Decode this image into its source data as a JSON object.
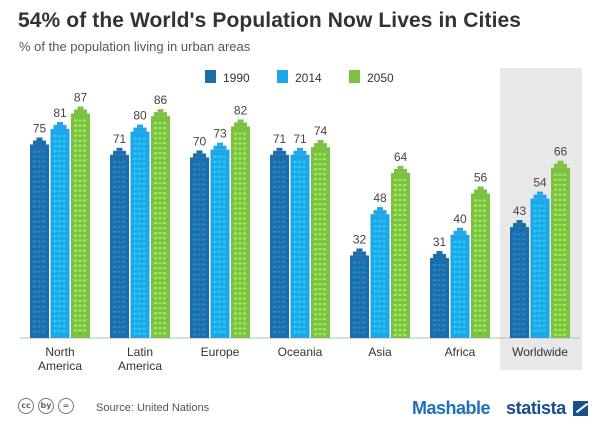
{
  "title": "54% of the World's Population Now Lives in Cities",
  "subtitle": "% of the population living in urban areas",
  "footer": {
    "source": "Source: United Nations",
    "brand_left": "Mashable",
    "brand_right": "statista",
    "license_icons": [
      "cc",
      "by",
      "="
    ]
  },
  "chart_data": {
    "type": "bar",
    "categories": [
      "North\nAmerica",
      "Latin\nAmerica",
      "Europe",
      "Oceania",
      "Asia",
      "Africa",
      "Worldwide"
    ],
    "series": [
      {
        "name": "1990",
        "color": "#1d6ea8",
        "values": [
          75,
          71,
          70,
          71,
          32,
          31,
          43
        ]
      },
      {
        "name": "2014",
        "color": "#1fa6e8",
        "values": [
          81,
          80,
          73,
          71,
          48,
          40,
          54
        ]
      },
      {
        "name": "2050",
        "color": "#7cc143",
        "values": [
          87,
          86,
          82,
          74,
          64,
          56,
          66
        ]
      }
    ],
    "ylim": [
      0,
      100
    ],
    "highlight_category": "Worldwide",
    "legend_position": "top-center",
    "grid": false,
    "data_labels": true
  }
}
